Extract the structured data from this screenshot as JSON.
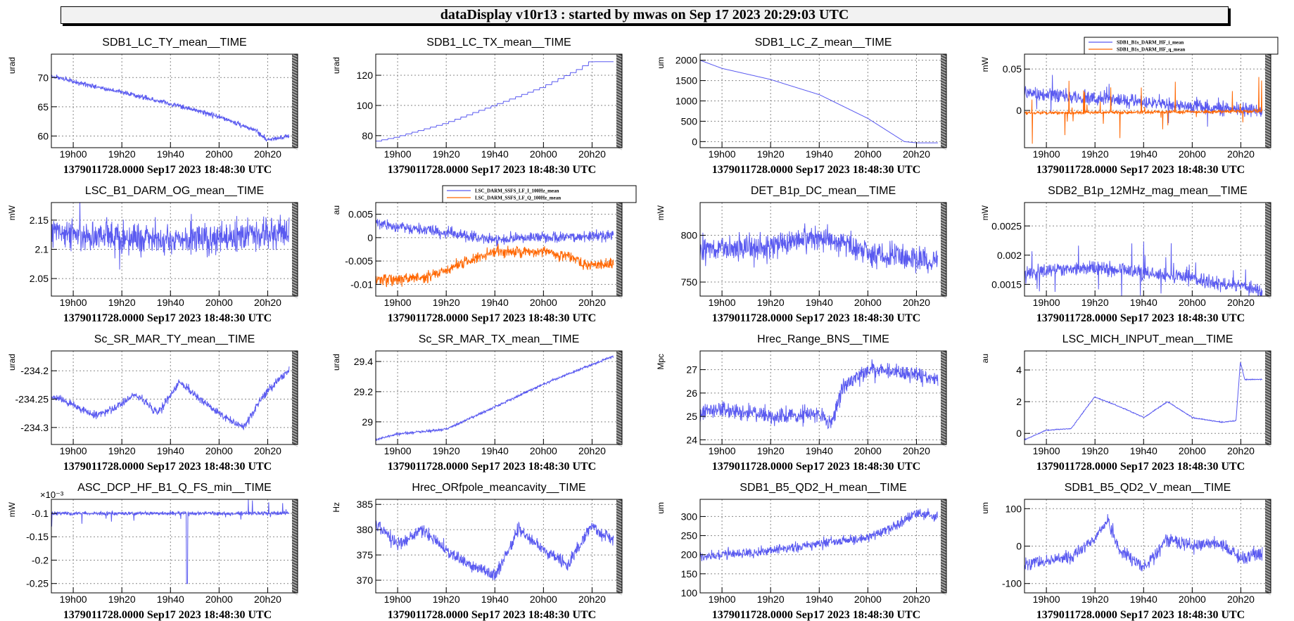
{
  "header": {
    "title": "dataDisplay v10r13 : started by mwas on Sep 17 2023 20:29:03 UTC"
  },
  "colors": {
    "series_blue": "#5a5af0",
    "series_orange": "#ff6600",
    "grid": "#888888"
  },
  "chart_data": [
    {
      "type": "line",
      "title": "SDB1_LC_TY_mean__TIME",
      "ylabel": "urad",
      "ylim": [
        58,
        74
      ],
      "yticks": [
        60,
        65,
        70
      ],
      "ytick_labels": [
        "60",
        "65",
        "70"
      ],
      "series": [
        {
          "color": "#5a5af0",
          "noise": 0.4,
          "points": [
            [
              18.85,
              70.3
            ],
            [
              19.0,
              69.3
            ],
            [
              19.33,
              67.5
            ],
            [
              19.67,
              65.5
            ],
            [
              20.0,
              63.3
            ],
            [
              20.25,
              61.0
            ],
            [
              20.33,
              59.3
            ],
            [
              20.47,
              60.0
            ]
          ]
        }
      ]
    },
    {
      "type": "line",
      "title": "SDB1_LC_TX_mean__TIME",
      "ylabel": "urad",
      "ylim": [
        72,
        134
      ],
      "yticks": [
        80,
        100,
        120
      ],
      "ytick_labels": [
        "80",
        "100",
        "120"
      ],
      "series": [
        {
          "color": "#5a5af0",
          "noise": 0,
          "step": 0.0417,
          "points": [
            [
              18.85,
              76
            ],
            [
              19.0,
              79
            ],
            [
              19.33,
              88
            ],
            [
              19.67,
              100
            ],
            [
              20.0,
              112
            ],
            [
              20.25,
              124
            ],
            [
              20.33,
              129
            ],
            [
              20.47,
              129
            ]
          ]
        }
      ]
    },
    {
      "type": "line",
      "title": "SDB1_LC_Z_mean__TIME",
      "ylabel": "um",
      "ylim": [
        -150,
        2150
      ],
      "yticks": [
        0,
        500,
        1000,
        1500,
        2000
      ],
      "ytick_labels": [
        "0",
        "500",
        "1000",
        "1500",
        "2000"
      ],
      "series": [
        {
          "color": "#5a5af0",
          "noise": 0,
          "points": [
            [
              18.85,
              2000
            ],
            [
              19.0,
              1800
            ],
            [
              19.33,
              1530
            ],
            [
              19.67,
              1150
            ],
            [
              20.0,
              570
            ],
            [
              20.25,
              0
            ],
            [
              20.33,
              -30
            ],
            [
              20.47,
              -30
            ]
          ]
        }
      ]
    },
    {
      "type": "line",
      "title": "",
      "ylabel": "mW",
      "ylim": [
        -0.045,
        0.068
      ],
      "yticks": [
        0,
        0.05
      ],
      "ytick_labels": [
        "0",
        "0.05"
      ],
      "legend": {
        "entries": [
          "SDB1_B1s_DARM_HF_i_mean",
          "SDB1_B1s_DARM_HF_q_mean"
        ],
        "placement": "top-right"
      },
      "series": [
        {
          "name": "SDB1_B1s_DARM_HF_i_mean",
          "color": "#5a5af0",
          "noise": 0.008,
          "spikes": 0.03,
          "points": [
            [
              18.85,
              0.022
            ],
            [
              19.33,
              0.014
            ],
            [
              19.67,
              0.01
            ],
            [
              20.0,
              0.005
            ],
            [
              20.47,
              0.0
            ]
          ]
        },
        {
          "name": "SDB1_B1s_DARM_HF_q_mean",
          "color": "#ff6600",
          "noise": 0.002,
          "spikes": 0.04,
          "points": [
            [
              18.85,
              -0.003
            ],
            [
              19.67,
              -0.002
            ],
            [
              20.47,
              -0.001
            ]
          ]
        }
      ]
    },
    {
      "type": "line",
      "title": "LSC_B1_DARM_OG_mean__TIME",
      "ylabel": "mW",
      "ylim": [
        2.02,
        2.18
      ],
      "yticks": [
        2.05,
        2.1,
        2.15
      ],
      "ytick_labels": [
        "2.05",
        "2.1",
        "2.15"
      ],
      "series": [
        {
          "color": "#5a5af0",
          "noise": 0.025,
          "spikes": 0.05,
          "points": [
            [
              18.85,
              2.13
            ],
            [
              19.33,
              2.12
            ],
            [
              19.67,
              2.115
            ],
            [
              20.0,
              2.12
            ],
            [
              20.47,
              2.13
            ]
          ]
        }
      ]
    },
    {
      "type": "line",
      "title": "",
      "ylabel": "au",
      "ylim": [
        -0.0125,
        0.0075
      ],
      "yticks": [
        -0.01,
        -0.005,
        0,
        0.005
      ],
      "ytick_labels": [
        "-0.01",
        "-0.005",
        "0",
        "0.005"
      ],
      "legend": {
        "entries": [
          "LSC_DARM_SSFS_LF_I_100Hz_mean",
          "LSC_DARM_SSFS_LF_Q_100Hz_mean"
        ],
        "placement": "top-center"
      },
      "series": [
        {
          "name": "LSC_DARM_SSFS_LF_I_100Hz_mean",
          "color": "#5a5af0",
          "noise": 0.0012,
          "points": [
            [
              18.85,
              0.003
            ],
            [
              19.33,
              0.001
            ],
            [
              19.67,
              -0.0005
            ],
            [
              20.0,
              0.0
            ],
            [
              20.47,
              0.0005
            ]
          ]
        },
        {
          "name": "LSC_DARM_SSFS_LF_Q_100Hz_mean",
          "color": "#ff6600",
          "noise": 0.0012,
          "points": [
            [
              18.85,
              -0.009
            ],
            [
              19.2,
              -0.0085
            ],
            [
              19.4,
              -0.006
            ],
            [
              19.67,
              -0.003
            ],
            [
              20.0,
              -0.003
            ],
            [
              20.17,
              -0.004
            ],
            [
              20.3,
              -0.006
            ],
            [
              20.47,
              -0.0055
            ]
          ]
        }
      ]
    },
    {
      "type": "line",
      "title": "DET_B1p_DC_mean__TIME",
      "ylabel": "mW",
      "ylim": [
        735,
        835
      ],
      "yticks": [
        750,
        800
      ],
      "ytick_labels": [
        "750",
        "800"
      ],
      "series": [
        {
          "color": "#5a5af0",
          "noise": 14,
          "points": [
            [
              18.85,
              785
            ],
            [
              19.33,
              788
            ],
            [
              19.67,
              800
            ],
            [
              20.0,
              782
            ],
            [
              20.47,
              772
            ]
          ]
        }
      ]
    },
    {
      "type": "line",
      "title": "SDB2_B1p_12MHz_mag_mean__TIME",
      "ylabel": "mW",
      "ylim": [
        0.0013,
        0.0029
      ],
      "yticks": [
        0.0015,
        0.002,
        0.0025
      ],
      "ytick_labels": [
        "0.0015",
        "0.002",
        "0.0025"
      ],
      "series": [
        {
          "color": "#5a5af0",
          "noise": 0.00012,
          "spikes": 0.0005,
          "points": [
            [
              18.85,
              0.0017
            ],
            [
              19.33,
              0.0018
            ],
            [
              19.67,
              0.0017
            ],
            [
              20.0,
              0.0016
            ],
            [
              20.47,
              0.0014
            ]
          ]
        }
      ]
    },
    {
      "type": "line",
      "title": "Sc_SR_MAR_TY_mean__TIME",
      "ylabel": "urad",
      "ylim": [
        -234.33,
        -234.165
      ],
      "yticks": [
        -234.3,
        -234.25,
        -234.2
      ],
      "ytick_labels": [
        "-234.3",
        "-234.25",
        "-234.2"
      ],
      "series": [
        {
          "color": "#5a5af0",
          "noise": 0.007,
          "points": [
            [
              18.85,
              -234.245
            ],
            [
              19.0,
              -234.26
            ],
            [
              19.15,
              -234.28
            ],
            [
              19.3,
              -234.265
            ],
            [
              19.42,
              -234.24
            ],
            [
              19.58,
              -234.275
            ],
            [
              19.73,
              -234.22
            ],
            [
              19.87,
              -234.25
            ],
            [
              20.0,
              -234.275
            ],
            [
              20.17,
              -234.3
            ],
            [
              20.3,
              -234.245
            ],
            [
              20.47,
              -234.2
            ]
          ]
        }
      ]
    },
    {
      "type": "line",
      "title": "Sc_SR_MAR_TX_mean__TIME",
      "ylabel": "urad",
      "ylim": [
        28.85,
        29.47
      ],
      "yticks": [
        29,
        29.2,
        29.4
      ],
      "ytick_labels": [
        "29",
        "29.2",
        "29.4"
      ],
      "series": [
        {
          "color": "#5a5af0",
          "noise": 0.008,
          "points": [
            [
              18.85,
              28.88
            ],
            [
              19.0,
              28.92
            ],
            [
              19.33,
              28.95
            ],
            [
              19.67,
              29.1
            ],
            [
              20.0,
              29.25
            ],
            [
              20.25,
              29.35
            ],
            [
              20.47,
              29.43
            ]
          ]
        }
      ]
    },
    {
      "type": "line",
      "title": "Hrec_Range_BNS__TIME",
      "ylabel": "Mpc",
      "ylim": [
        23.8,
        27.8
      ],
      "yticks": [
        24,
        25,
        26,
        27
      ],
      "ytick_labels": [
        "24",
        "25",
        "26",
        "27"
      ],
      "series": [
        {
          "color": "#5a5af0",
          "noise": 0.35,
          "points": [
            [
              18.85,
              25.2
            ],
            [
              19.0,
              25.3
            ],
            [
              19.33,
              25.0
            ],
            [
              19.67,
              25.1
            ],
            [
              19.75,
              24.7
            ],
            [
              19.83,
              26.3
            ],
            [
              20.0,
              27.0
            ],
            [
              20.25,
              26.9
            ],
            [
              20.47,
              26.6
            ]
          ]
        }
      ]
    },
    {
      "type": "line",
      "title": "LSC_MICH_INPUT_mean__TIME",
      "ylabel": "au",
      "ylim": [
        -0.7,
        5.2
      ],
      "yticks": [
        0,
        2,
        4
      ],
      "ytick_labels": [
        "0",
        "2",
        "4"
      ],
      "series": [
        {
          "color": "#5a5af0",
          "noise": 0.03,
          "points": [
            [
              18.85,
              -0.4
            ],
            [
              19.0,
              0.2
            ],
            [
              19.17,
              0.3
            ],
            [
              19.33,
              2.3
            ],
            [
              19.5,
              1.7
            ],
            [
              19.67,
              1.0
            ],
            [
              19.83,
              2.0
            ],
            [
              20.0,
              1.0
            ],
            [
              20.2,
              0.7
            ],
            [
              20.3,
              0.8
            ],
            [
              20.33,
              4.5
            ],
            [
              20.36,
              3.4
            ],
            [
              20.47,
              3.4
            ]
          ]
        }
      ]
    },
    {
      "type": "line",
      "title": "ASC_DCP_HF_B1_Q_FS_min__TIME",
      "ylabel": "mW",
      "ylim": [
        -0.27,
        -0.07
      ],
      "y_multiplier": "×10⁻³",
      "yticks": [
        -0.25,
        -0.2,
        -0.15,
        -0.1
      ],
      "ytick_labels": [
        "-0.25",
        "-0.2",
        "-0.15",
        "-0.1"
      ],
      "series": [
        {
          "color": "#5a5af0",
          "noise": 0.004,
          "spikes": 0.03,
          "points": [
            [
              18.85,
              -0.1
            ],
            [
              19.67,
              -0.1
            ],
            [
              20.47,
              -0.1
            ]
          ],
          "drop": [
            19.78,
            -0.25
          ]
        }
      ]
    },
    {
      "type": "line",
      "title": "Hrec_ORfpole_meancavity__TIME",
      "ylabel": "Hz",
      "ylim": [
        367.5,
        386
      ],
      "yticks": [
        370,
        375,
        380,
        385
      ],
      "ytick_labels": [
        "370",
        "375",
        "380",
        "385"
      ],
      "series": [
        {
          "color": "#5a5af0",
          "noise": 1.3,
          "points": [
            [
              18.85,
              381
            ],
            [
              19.0,
              377
            ],
            [
              19.17,
              380
            ],
            [
              19.33,
              376
            ],
            [
              19.5,
              373
            ],
            [
              19.67,
              371
            ],
            [
              19.83,
              380
            ],
            [
              20.0,
              376
            ],
            [
              20.17,
              373
            ],
            [
              20.33,
              381
            ],
            [
              20.47,
              378
            ]
          ]
        }
      ]
    },
    {
      "type": "line",
      "title": "SDB1_B5_QD2_H_mean__TIME",
      "ylabel": "um",
      "ylim": [
        100,
        345
      ],
      "yticks": [
        100,
        150,
        200,
        250,
        300
      ],
      "ytick_labels": [
        "100",
        "150",
        "200",
        "250",
        "300"
      ],
      "series": [
        {
          "color": "#5a5af0",
          "noise": 13,
          "points": [
            [
              18.85,
              190
            ],
            [
              19.0,
              200
            ],
            [
              19.33,
              210
            ],
            [
              19.67,
              230
            ],
            [
              20.0,
              245
            ],
            [
              20.2,
              275
            ],
            [
              20.33,
              310
            ],
            [
              20.47,
              300
            ]
          ]
        }
      ]
    },
    {
      "type": "line",
      "title": "SDB1_B5_QD2_V_mean__TIME",
      "ylabel": "um",
      "ylim": [
        -125,
        125
      ],
      "yticks": [
        -100,
        0,
        100
      ],
      "ytick_labels": [
        "-100",
        "0",
        "100"
      ],
      "series": [
        {
          "color": "#5a5af0",
          "noise": 18,
          "points": [
            [
              18.85,
              -50
            ],
            [
              19.0,
              -40
            ],
            [
              19.17,
              -30
            ],
            [
              19.33,
              20
            ],
            [
              19.42,
              70
            ],
            [
              19.5,
              -10
            ],
            [
              19.67,
              -60
            ],
            [
              19.75,
              -20
            ],
            [
              19.83,
              20
            ],
            [
              20.0,
              0
            ],
            [
              20.17,
              10
            ],
            [
              20.33,
              -30
            ],
            [
              20.47,
              -20
            ]
          ]
        }
      ]
    }
  ],
  "x_axis": {
    "xlim": [
      18.85,
      20.5
    ],
    "ticks": [
      19.0,
      19.3333,
      19.6667,
      20.0,
      20.3333
    ],
    "tick_labels": [
      "19h00",
      "19h20",
      "19h40",
      "20h00",
      "20h20"
    ],
    "footer": "1379011728.0000 Sep17 2023 18:48:30 UTC"
  }
}
